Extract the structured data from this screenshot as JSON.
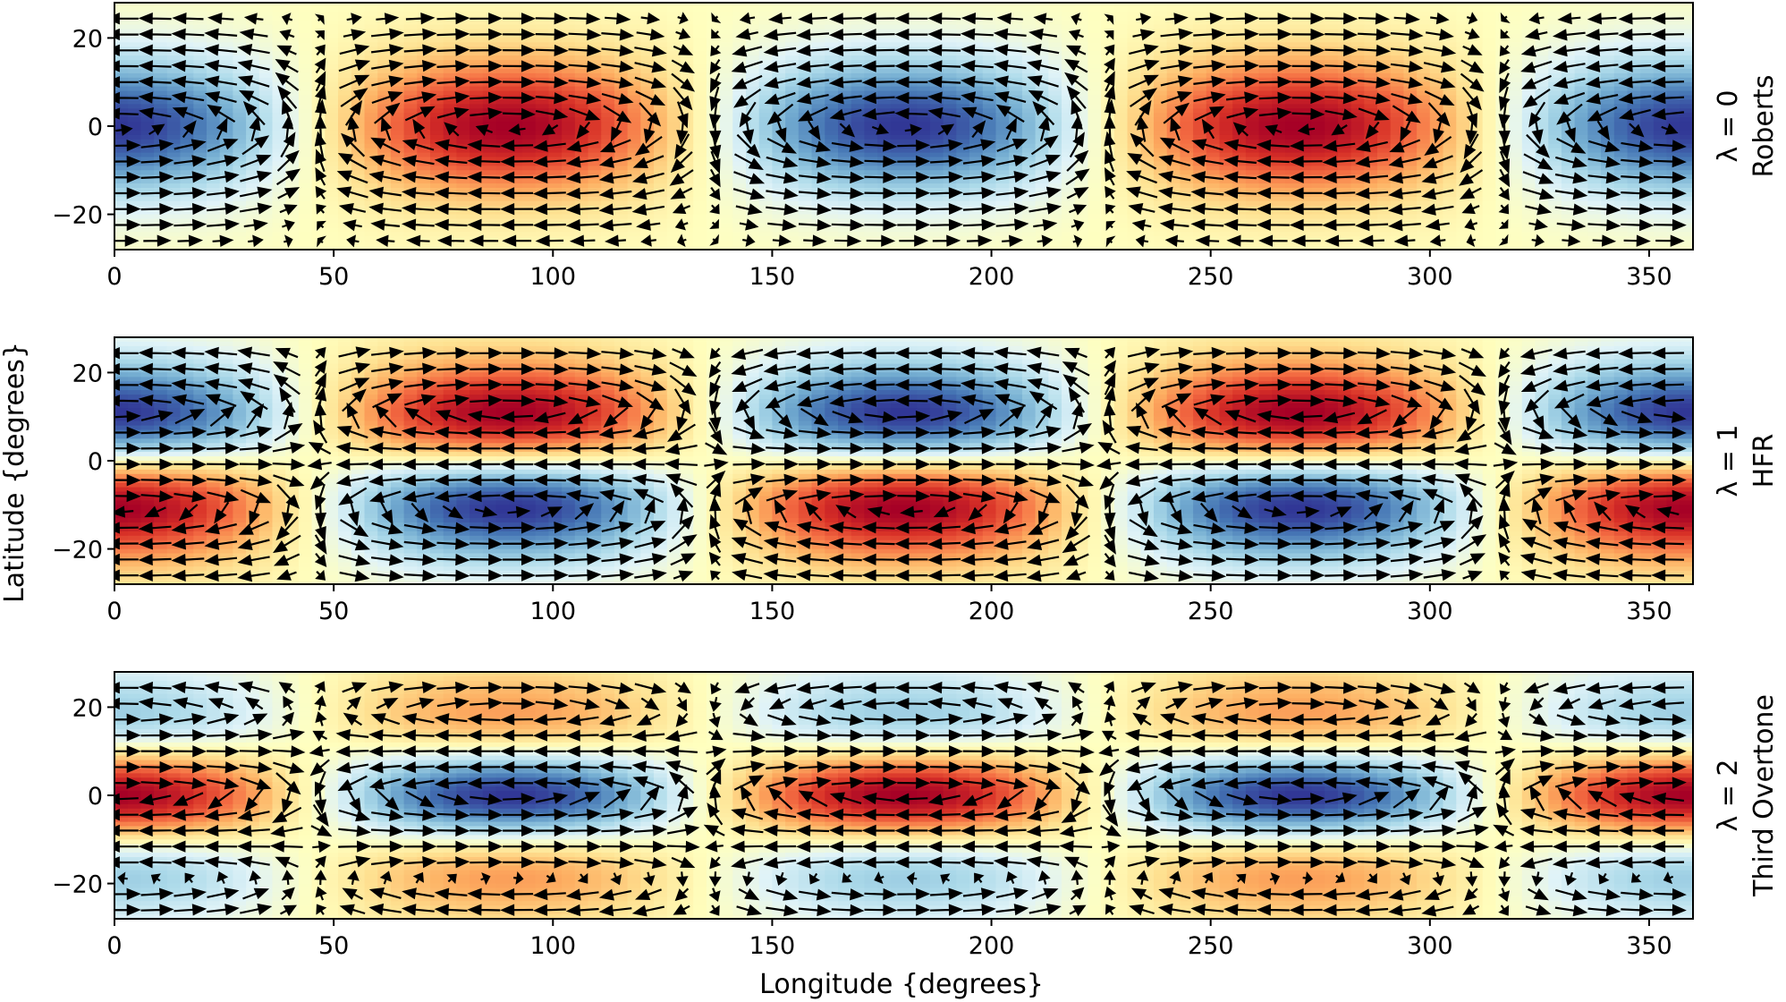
{
  "chart_data": {
    "type": "heatmap",
    "xlabel": "Longitude {degrees}",
    "ylabel": "Latitude {degrees}",
    "xlim": [
      0,
      360
    ],
    "ylim": [
      -28,
      28
    ],
    "xticks": [
      0,
      50,
      100,
      150,
      200,
      250,
      300,
      350
    ],
    "yticks": [
      -20,
      0,
      20
    ],
    "colormap": [
      "#313695",
      "#4575b4",
      "#74add1",
      "#abd9e9",
      "#e0f3f8",
      "#ffffbf",
      "#fee090",
      "#fdae61",
      "#f46d43",
      "#d73027",
      "#a50026"
    ],
    "arrow_color": "#000000",
    "grid": false,
    "panels": [
      {
        "lambda": 0,
        "label_top": "λ = 0",
        "label_bottom": "Roberts",
        "zonal_wavenumber": 2,
        "phase_deg": 0,
        "latitudinal_mode": 0
      },
      {
        "lambda": 1,
        "label_top": "λ = 1",
        "label_bottom": "HFR",
        "zonal_wavenumber": 2,
        "phase_deg": 0,
        "latitudinal_mode": 1
      },
      {
        "lambda": 2,
        "label_top": "λ = 2",
        "label_bottom": "Third Overtone",
        "zonal_wavenumber": 2,
        "phase_deg": 0,
        "latitudinal_mode": 2
      }
    ]
  }
}
